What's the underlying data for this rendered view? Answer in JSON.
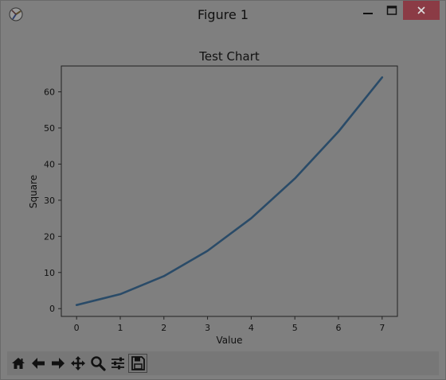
{
  "window": {
    "title": "Figure 1",
    "controls": [
      "minimize-button",
      "maximize-button",
      "close-button"
    ]
  },
  "toolbar": {
    "buttons": [
      "home-icon",
      "back-arrow-icon",
      "forward-arrow-icon",
      "pan-icon",
      "zoom-icon",
      "configure-subplots-icon",
      "save-icon"
    ]
  },
  "chart_data": {
    "type": "line",
    "title": "Test Chart",
    "xlabel": "Value",
    "ylabel": "Square",
    "x": [
      0,
      1,
      2,
      3,
      4,
      5,
      6,
      7
    ],
    "series": [
      {
        "values": [
          1,
          4,
          9,
          16,
          25,
          36,
          49,
          64
        ],
        "color": "#2a4b68"
      }
    ],
    "xticks": [
      "0",
      "1",
      "2",
      "3",
      "4",
      "5",
      "6",
      "7"
    ],
    "yticks": [
      "0",
      "10",
      "20",
      "30",
      "40",
      "50",
      "60"
    ],
    "xlim": [
      -0.35,
      7.35
    ],
    "ylim": [
      -2.15,
      67.15
    ],
    "grid": false,
    "legend": "none"
  }
}
